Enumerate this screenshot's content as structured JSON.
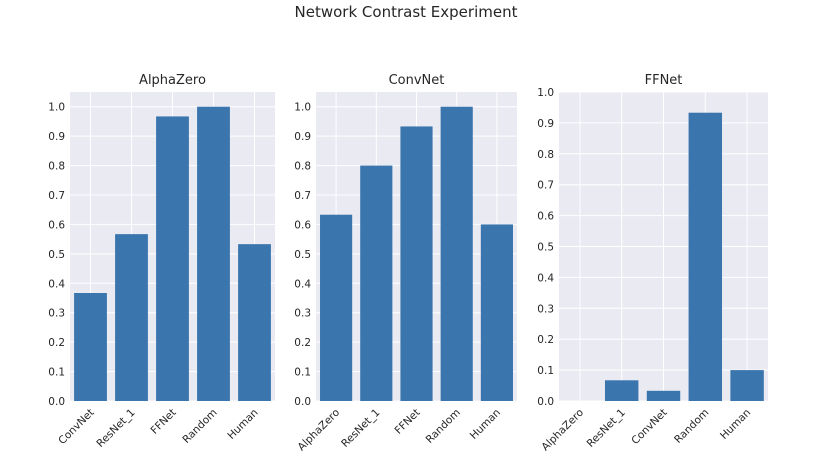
{
  "figure_title": "Network Contrast Experiment",
  "colors": {
    "bar": "#3a75ae",
    "plot_bg": "#eaeaf2",
    "grid": "#ffffff",
    "text": "#262626"
  },
  "chart_data": [
    {
      "type": "bar",
      "title": "AlphaZero",
      "xlabel": "",
      "ylabel": "",
      "categories": [
        "ConvNet",
        "ResNet_1",
        "FFNet",
        "Random",
        "Human"
      ],
      "values": [
        0.367,
        0.567,
        0.967,
        1.0,
        0.533
      ],
      "ylim": [
        0,
        1.05
      ],
      "yticks": [
        "0.0",
        "0.1",
        "0.2",
        "0.3",
        "0.4",
        "0.5",
        "0.6",
        "0.7",
        "0.8",
        "0.9",
        "1.0"
      ],
      "grid": true
    },
    {
      "type": "bar",
      "title": "ConvNet",
      "xlabel": "",
      "ylabel": "",
      "categories": [
        "AlphaZero",
        "ResNet_1",
        "FFNet",
        "Random",
        "Human"
      ],
      "values": [
        0.633,
        0.8,
        0.933,
        1.0,
        0.6
      ],
      "ylim": [
        0,
        1.05
      ],
      "yticks": [
        "0.0",
        "0.1",
        "0.2",
        "0.3",
        "0.4",
        "0.5",
        "0.6",
        "0.7",
        "0.8",
        "0.9",
        "1.0"
      ],
      "grid": true
    },
    {
      "type": "bar",
      "title": "FFNet",
      "xlabel": "",
      "ylabel": "",
      "categories": [
        "AlphaZero",
        "ResNet_1",
        "ConvNet",
        "Random",
        "Human"
      ],
      "values": [
        0.0,
        0.067,
        0.033,
        0.933,
        0.1
      ],
      "ylim": [
        0,
        1.0
      ],
      "yticks": [
        "0.0",
        "0.1",
        "0.2",
        "0.3",
        "0.4",
        "0.5",
        "0.6",
        "0.7",
        "0.8",
        "0.9",
        "1.0"
      ],
      "grid": true
    }
  ]
}
